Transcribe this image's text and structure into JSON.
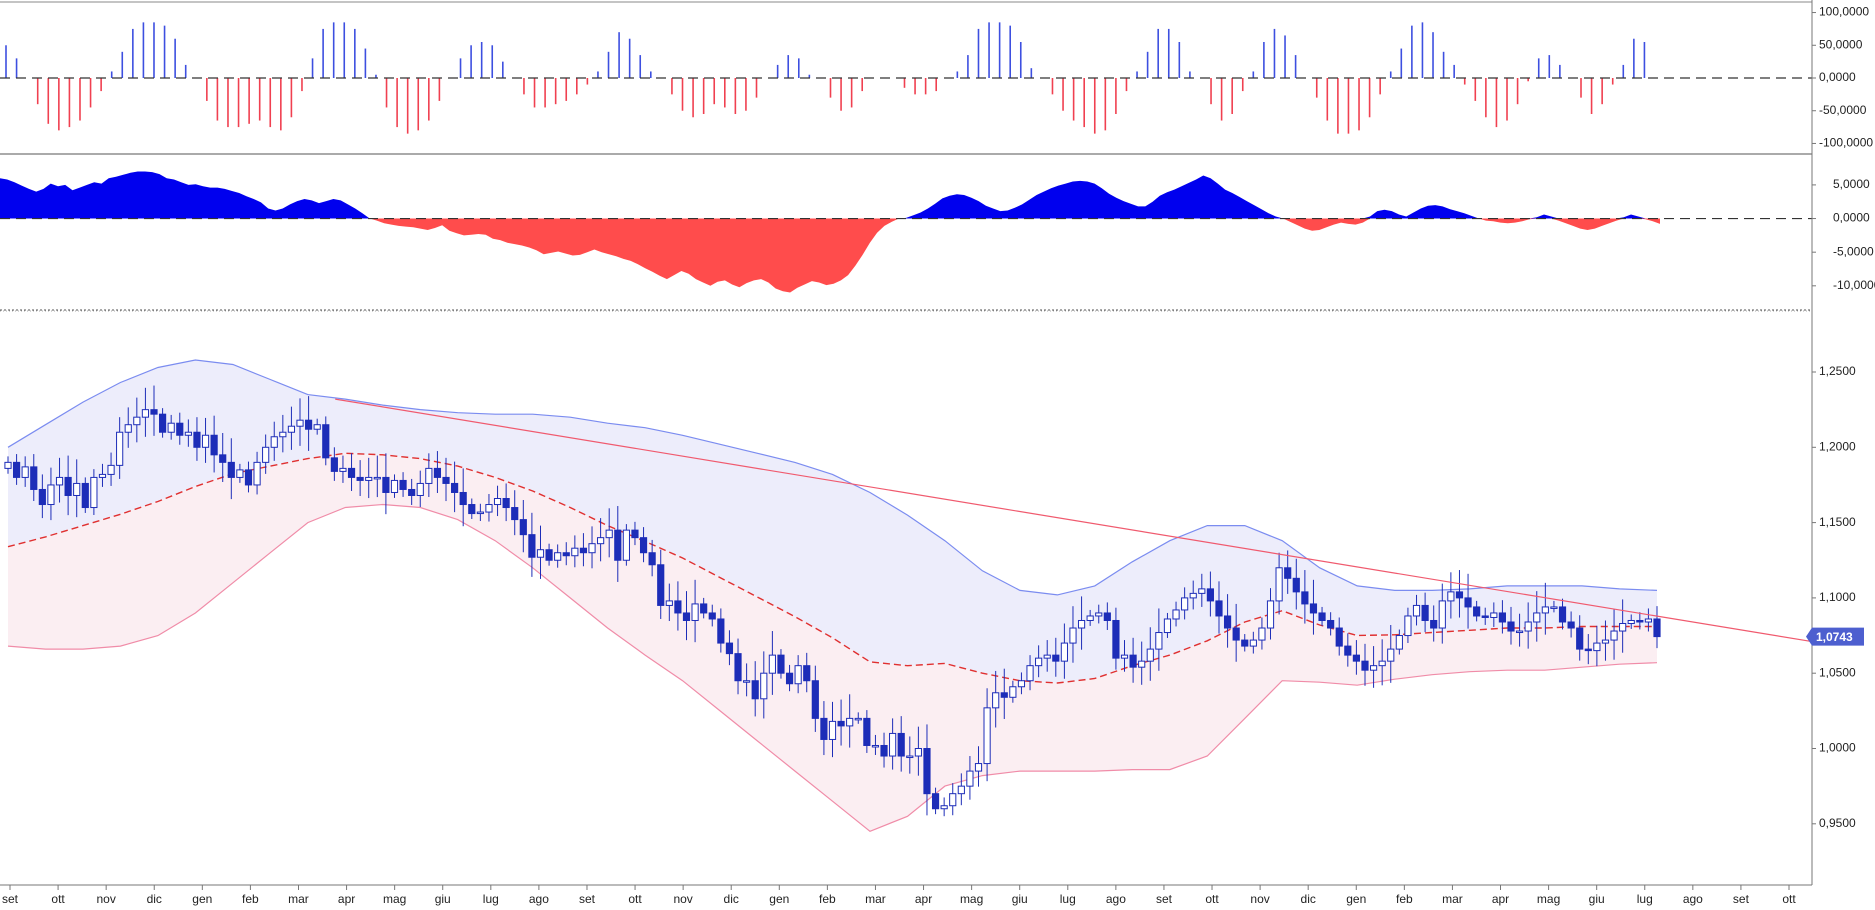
{
  "chart_data": [
    {
      "id": "osc_histogram",
      "type": "bar",
      "title": "",
      "ylim": [
        -110000,
        110000
      ],
      "y_ticks": [
        "100,0000",
        "50,0000",
        "0,0000",
        "-50,0000",
        "-100,0000"
      ],
      "y_tick_values": [
        100000,
        50000,
        0,
        -50000,
        -100000
      ],
      "colors": {
        "positive": "#3d4fe0",
        "negative": "#f04050"
      },
      "values": [
        50000,
        30000,
        0,
        -40000,
        -70000,
        -80000,
        -75000,
        -65000,
        -45000,
        -20000,
        10000,
        40000,
        75000,
        85000,
        85000,
        80000,
        60000,
        20000,
        0,
        -35000,
        -65000,
        -75000,
        -75000,
        -70000,
        -65000,
        -75000,
        -80000,
        -60000,
        -20000,
        30000,
        75000,
        85000,
        85000,
        75000,
        45000,
        5000,
        -45000,
        -75000,
        -85000,
        -80000,
        -65000,
        -35000,
        0,
        30000,
        50000,
        55000,
        50000,
        25000,
        0,
        -25000,
        -45000,
        -45000,
        -40000,
        -35000,
        -25000,
        -10000,
        10000,
        40000,
        70000,
        60000,
        35000,
        10000,
        0,
        -25000,
        -50000,
        -60000,
        -55000,
        -40000,
        -45000,
        -55000,
        -50000,
        -30000,
        0,
        20000,
        35000,
        30000,
        5000,
        0,
        -30000,
        -50000,
        -45000,
        -20000,
        0,
        0,
        0,
        -15000,
        -25000,
        -25000,
        -20000,
        0,
        10000,
        35000,
        75000,
        85000,
        85000,
        80000,
        55000,
        15000,
        0,
        -25000,
        -50000,
        -65000,
        -75000,
        -85000,
        -80000,
        -55000,
        -20000,
        10000,
        40000,
        75000,
        75000,
        55000,
        10000,
        0,
        -40000,
        -65000,
        -55000,
        -20000,
        10000,
        55000,
        75000,
        65000,
        35000,
        0,
        -30000,
        -65000,
        -85000,
        -85000,
        -80000,
        -60000,
        -25000,
        10000,
        45000,
        80000,
        85000,
        70000,
        40000,
        20000,
        -10000,
        -35000,
        -60000,
        -75000,
        -65000,
        -40000,
        -5000,
        30000,
        35000,
        20000,
        0,
        -30000,
        -55000,
        -40000,
        -10000,
        20000,
        60000,
        55000,
        0
      ]
    },
    {
      "id": "osc_area",
      "type": "area",
      "title": "",
      "ylim": [
        -13000,
        9000
      ],
      "y_ticks": [
        "5,0000",
        "0,0000",
        "-5,0000",
        "-10,0000"
      ],
      "y_tick_values": [
        5000,
        0,
        -5000,
        -10000
      ],
      "colors": {
        "positive": "#0000ee",
        "negative": "#ff4c4c"
      },
      "values": [
        6000,
        5800,
        5400,
        4900,
        4400,
        4000,
        4400,
        5200,
        4800,
        5000,
        4200,
        4600,
        5000,
        5400,
        5200,
        6000,
        6200,
        6500,
        6800,
        7000,
        7000,
        6900,
        6600,
        6000,
        5800,
        5400,
        5000,
        5100,
        4800,
        4600,
        4600,
        4400,
        4100,
        3800,
        3300,
        2900,
        2400,
        1500,
        1200,
        1500,
        2100,
        2600,
        2900,
        2700,
        2300,
        2600,
        2900,
        2700,
        2100,
        1500,
        800,
        0,
        -300,
        -700,
        -900,
        -1100,
        -1200,
        -1300,
        -1500,
        -1700,
        -1400,
        -1000,
        -1800,
        -2200,
        -2500,
        -2400,
        -2300,
        -2400,
        -3000,
        -3200,
        -3600,
        -3800,
        -4000,
        -4300,
        -4700,
        -5300,
        -5100,
        -4900,
        -5200,
        -5500,
        -5400,
        -5000,
        -4600,
        -5000,
        -5300,
        -5600,
        -6000,
        -6300,
        -6800,
        -7400,
        -7900,
        -8500,
        -9000,
        -8400,
        -7800,
        -8200,
        -9000,
        -9500,
        -10000,
        -9400,
        -9200,
        -9800,
        -10200,
        -9600,
        -9200,
        -9000,
        -9500,
        -10400,
        -10800,
        -11000,
        -10300,
        -9800,
        -9300,
        -9500,
        -9900,
        -9700,
        -9200,
        -8400,
        -7000,
        -5400,
        -3600,
        -2100,
        -1100,
        -500,
        0,
        100,
        500,
        900,
        1500,
        2200,
        3000,
        3400,
        3600,
        3500,
        3100,
        2600,
        1900,
        1500,
        1100,
        1200,
        1600,
        2100,
        2800,
        3500,
        4000,
        4500,
        4900,
        5200,
        5500,
        5600,
        5500,
        5200,
        4500,
        3700,
        3100,
        2600,
        2200,
        1800,
        1800,
        2500,
        3400,
        3900,
        4300,
        4800,
        5300,
        5800,
        6400,
        6000,
        5200,
        4300,
        3800,
        3200,
        2600,
        2000,
        1400,
        800,
        300,
        0,
        -500,
        -1000,
        -1500,
        -1800,
        -1700,
        -1300,
        -900,
        -600,
        -800,
        -900,
        -600,
        300,
        1100,
        1300,
        1100,
        600,
        300,
        900,
        1500,
        1900,
        2000,
        1800,
        1400,
        1100,
        800,
        400,
        0,
        -300,
        -400,
        -600,
        -700,
        -600,
        -400,
        -100,
        200,
        600,
        300,
        -300,
        -700,
        -1100,
        -1500,
        -1700,
        -1500,
        -1100,
        -700,
        -300,
        200,
        600,
        300,
        -100,
        -400,
        -800
      ]
    },
    {
      "id": "price",
      "type": "candlestick",
      "title": "",
      "ylim": [
        0.92,
        1.29
      ],
      "y_ticks": [
        "1,2500",
        "1,2000",
        "1,1500",
        "1,1000",
        "1,0500",
        "1,0000",
        "0,9500"
      ],
      "y_tick_values": [
        1.25,
        1.2,
        1.15,
        1.1,
        1.05,
        1.0,
        0.95
      ],
      "x_labels": [
        "set",
        "ott",
        "nov",
        "dic",
        "gen",
        "feb",
        "mar",
        "apr",
        "mag",
        "giu",
        "lug",
        "ago",
        "set",
        "ott",
        "nov",
        "dic",
        "gen",
        "feb",
        "mar",
        "apr",
        "mag",
        "giu",
        "lug",
        "ago",
        "set",
        "ott",
        "nov",
        "dic",
        "gen",
        "feb",
        "mar",
        "apr",
        "mag",
        "giu",
        "lug",
        "ago",
        "set",
        "ott"
      ],
      "last_price_label": "1,0743",
      "last_price_value": 1.0743,
      "colors": {
        "candle_up_fill": "#ffffff",
        "candle_down_fill": "#1d2db8",
        "candle_border": "#1d2db8",
        "middle_band": "#e03030",
        "upper_band": "#7b8cf0",
        "lower_band": "#f08ca8",
        "upper_zone": "#ededfb",
        "lower_zone": "#fbeef2",
        "trendline": "#f05a6e",
        "badge": "#4d5fcf"
      },
      "closes": [
        1.19,
        1.18,
        1.187,
        1.172,
        1.162,
        1.175,
        1.18,
        1.168,
        1.176,
        1.16,
        1.18,
        1.182,
        1.188,
        1.21,
        1.215,
        1.22,
        1.225,
        1.222,
        1.21,
        1.216,
        1.208,
        1.21,
        1.2,
        1.208,
        1.195,
        1.19,
        1.18,
        1.185,
        1.175,
        1.19,
        1.2,
        1.207,
        1.21,
        1.214,
        1.218,
        1.212,
        1.215,
        1.193,
        1.184,
        1.186,
        1.18,
        1.178,
        1.18,
        1.18,
        1.17,
        1.178,
        1.172,
        1.168,
        1.176,
        1.186,
        1.18,
        1.176,
        1.17,
        1.162,
        1.156,
        1.157,
        1.162,
        1.166,
        1.16,
        1.152,
        1.142,
        1.127,
        1.132,
        1.125,
        1.13,
        1.128,
        1.133,
        1.13,
        1.136,
        1.14,
        1.145,
        1.125,
        1.145,
        1.14,
        1.13,
        1.122,
        1.095,
        1.098,
        1.09,
        1.085,
        1.096,
        1.09,
        1.086,
        1.07,
        1.063,
        1.045,
        1.045,
        1.033,
        1.05,
        1.062,
        1.05,
        1.043,
        1.055,
        1.045,
        1.02,
        1.006,
        1.018,
        1.015,
        1.02,
        1.02,
        1.002,
        1.002,
        0.995,
        1.01,
        0.995,
        0.995,
        1.0,
        0.97,
        0.96,
        0.962,
        0.97,
        0.975,
        0.985,
        0.99,
        1.027,
        1.037,
        1.034,
        1.041,
        1.045,
        1.055,
        1.06,
        1.062,
        1.058,
        1.07,
        1.08,
        1.085,
        1.088,
        1.09,
        1.085,
        1.06,
        1.062,
        1.054,
        1.058,
        1.066,
        1.077,
        1.086,
        1.092,
        1.1,
        1.103,
        1.106,
        1.098,
        1.088,
        1.08,
        1.072,
        1.068,
        1.072,
        1.08,
        1.098,
        1.12,
        1.113,
        1.104,
        1.096,
        1.09,
        1.085,
        1.08,
        1.068,
        1.062,
        1.058,
        1.052,
        1.055,
        1.058,
        1.066,
        1.075,
        1.088,
        1.095,
        1.085,
        1.08,
        1.098,
        1.104,
        1.1,
        1.094,
        1.088,
        1.087,
        1.09,
        1.084,
        1.078,
        1.078,
        1.084,
        1.09,
        1.094,
        1.094,
        1.084,
        1.08,
        1.066,
        1.065,
        1.07,
        1.072,
        1.078,
        1.083,
        1.085,
        1.084,
        1.086,
        1.0743
      ],
      "upper_band": [
        1.2,
        1.215,
        1.23,
        1.243,
        1.253,
        1.258,
        1.255,
        1.245,
        1.235,
        1.232,
        1.228,
        1.225,
        1.223,
        1.222,
        1.222,
        1.22,
        1.216,
        1.213,
        1.208,
        1.202,
        1.196,
        1.19,
        1.182,
        1.17,
        1.155,
        1.138,
        1.118,
        1.105,
        1.102,
        1.108,
        1.124,
        1.138,
        1.148,
        1.148,
        1.138,
        1.12,
        1.108,
        1.105,
        1.105,
        1.106,
        1.108,
        1.108,
        1.108,
        1.106,
        1.105
      ],
      "lower_band": [
        1.068,
        1.066,
        1.066,
        1.068,
        1.075,
        1.09,
        1.11,
        1.13,
        1.15,
        1.16,
        1.162,
        1.16,
        1.152,
        1.138,
        1.12,
        1.1,
        1.08,
        1.062,
        1.045,
        1.025,
        1.005,
        0.985,
        0.965,
        0.945,
        0.955,
        0.975,
        0.982,
        0.985,
        0.985,
        0.985,
        0.986,
        0.986,
        0.995,
        1.02,
        1.045,
        1.044,
        1.042,
        1.046,
        1.049,
        1.051,
        1.052,
        1.052,
        1.054,
        1.056,
        1.057
      ],
      "trendline": {
        "from": [
          0.185,
          1.232
        ],
        "to": [
          1.0,
          1.071
        ]
      }
    }
  ]
}
